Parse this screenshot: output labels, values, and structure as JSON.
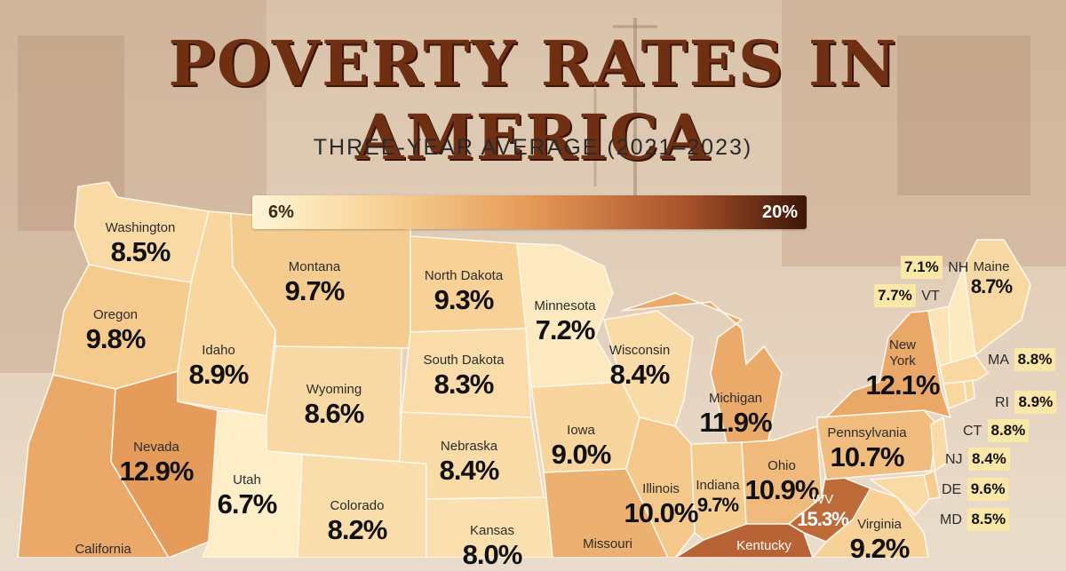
{
  "title": "POVERTY RATES IN AMERICA",
  "subtitle": "THREE-YEAR AVERAGE (2021–2023)",
  "legend": {
    "min_label": "6%",
    "max_label": "20%",
    "min": 6,
    "max": 20,
    "colors": [
      "#fff6d6",
      "#f6cf92",
      "#e59a58",
      "#a9532a",
      "#3e1607"
    ]
  },
  "states": {
    "washington": {
      "name": "Washington",
      "value": "8.5%",
      "rate": 8.5
    },
    "oregon": {
      "name": "Oregon",
      "value": "9.8%",
      "rate": 9.8
    },
    "california": {
      "name": "California",
      "value": "",
      "rate": 12.0
    },
    "idaho": {
      "name": "Idaho",
      "value": "8.9%",
      "rate": 8.9
    },
    "nevada": {
      "name": "Nevada",
      "value": "12.9%",
      "rate": 12.9
    },
    "montana": {
      "name": "Montana",
      "value": "9.7%",
      "rate": 9.7
    },
    "wyoming": {
      "name": "Wyoming",
      "value": "8.6%",
      "rate": 8.6
    },
    "utah": {
      "name": "Utah",
      "value": "6.7%",
      "rate": 6.7
    },
    "colorado": {
      "name": "Colorado",
      "value": "8.2%",
      "rate": 8.2
    },
    "north_dakota": {
      "name": "North Dakota",
      "value": "9.3%",
      "rate": 9.3
    },
    "south_dakota": {
      "name": "South Dakota",
      "value": "8.3%",
      "rate": 8.3
    },
    "nebraska": {
      "name": "Nebraska",
      "value": "8.4%",
      "rate": 8.4
    },
    "kansas": {
      "name": "Kansas",
      "value": "8.0%",
      "rate": 8.0
    },
    "minnesota": {
      "name": "Minnesota",
      "value": "7.2%",
      "rate": 7.2
    },
    "iowa": {
      "name": "Iowa",
      "value": "9.0%",
      "rate": 9.0
    },
    "missouri": {
      "name": "Missouri",
      "value": "",
      "rate": 11.5
    },
    "wisconsin": {
      "name": "Wisconsin",
      "value": "8.4%",
      "rate": 8.4
    },
    "illinois": {
      "name": "Illinois",
      "value": "10.0%",
      "rate": 10.0
    },
    "michigan": {
      "name": "Michigan",
      "value": "11.9%",
      "rate": 11.9
    },
    "indiana": {
      "name": "Indiana",
      "value": "9.7%",
      "rate": 9.7
    },
    "ohio": {
      "name": "Ohio",
      "value": "10.9%",
      "rate": 10.9
    },
    "kentucky": {
      "name": "Kentucky",
      "value": "",
      "rate": 15.7
    },
    "wv": {
      "name": "WV",
      "value": "15.3%",
      "rate": 15.3
    },
    "virginia": {
      "name": "Virginia",
      "value": "9.2%",
      "rate": 9.2
    },
    "pennsylvania": {
      "name": "Pennsylvania",
      "value": "10.7%",
      "rate": 10.7
    },
    "new_york": {
      "name": "New York",
      "name_line1": "New",
      "name_line2": "York",
      "value": "12.1%",
      "rate": 12.1
    },
    "maine": {
      "name": "Maine",
      "value": "8.7%",
      "rate": 8.7
    },
    "vermont": {
      "name": "VT",
      "value": "7.7%",
      "rate": 7.7
    },
    "new_hampshire": {
      "name": "NH",
      "value": "7.1%",
      "rate": 7.1
    },
    "massachusetts": {
      "name": "MA",
      "value": "8.8%",
      "rate": 8.8
    },
    "rhode_island": {
      "name": "RI",
      "value": "8.9%",
      "rate": 8.9
    },
    "connecticut": {
      "name": "CT",
      "value": "8.8%",
      "rate": 8.8
    },
    "new_jersey": {
      "name": "NJ",
      "value": "8.4%",
      "rate": 8.4
    },
    "delaware": {
      "name": "DE",
      "value": "9.6%",
      "rate": 9.6
    },
    "maryland": {
      "name": "MD",
      "value": "8.5%",
      "rate": 8.5
    }
  }
}
